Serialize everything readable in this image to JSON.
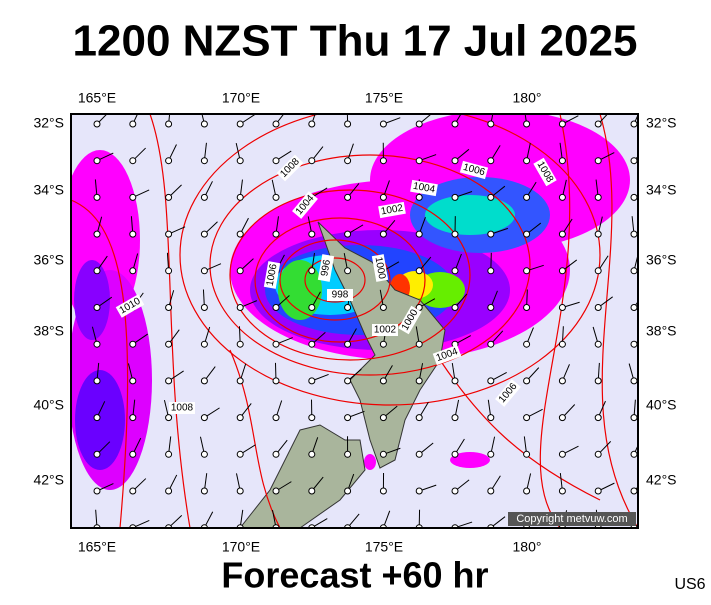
{
  "title": "1200 NZST Thu 17 Jul 2025",
  "longitude_labels": [
    "165°E",
    "170°E",
    "175°E",
    "180°"
  ],
  "latitude_labels": [
    "32°S",
    "34°S",
    "36°S",
    "38°S",
    "40°S",
    "42°S"
  ],
  "isobar_labels": [
    1006,
    1008,
    1008,
    1004,
    1002,
    1004,
    1006,
    996,
    998,
    1000,
    1000,
    1002,
    1004,
    1006,
    1010,
    1008
  ],
  "copyright": "Copyright metvuw.com",
  "footer": "Forecast +60 hr",
  "code": "US6"
}
